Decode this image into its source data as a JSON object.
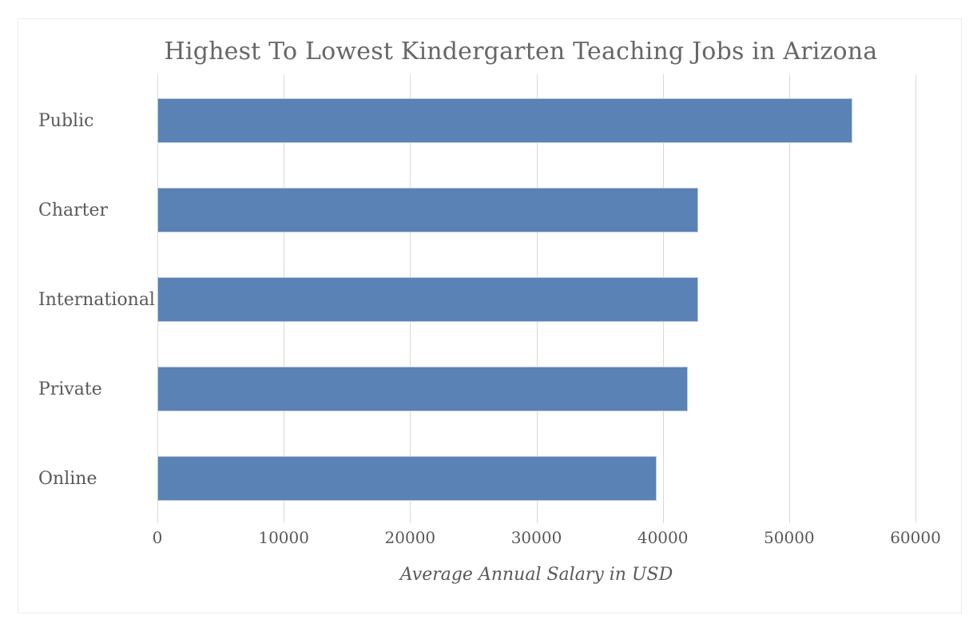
{
  "chart_data": {
    "type": "bar",
    "orientation": "horizontal",
    "title": "Highest To Lowest Kindergarten Teaching Jobs in Arizona",
    "xlabel": "Average Annual Salary in USD",
    "ylabel": "",
    "categories": [
      "Public",
      "Charter",
      "International",
      "Private",
      "Online"
    ],
    "values": [
      55000,
      42800,
      42800,
      42000,
      39500
    ],
    "xlim": [
      0,
      60000
    ],
    "xticks": [
      0,
      10000,
      20000,
      30000,
      40000,
      50000,
      60000
    ],
    "grid": "vertical",
    "legend": "none",
    "colors": {
      "bar": "#5b82b4",
      "bar_edge": "#b9cbe3",
      "gridline": "#d9d9d9",
      "text": "#595959",
      "title": "#666666",
      "panel_border": "#ebebeb",
      "background": "#ffffff"
    }
  }
}
